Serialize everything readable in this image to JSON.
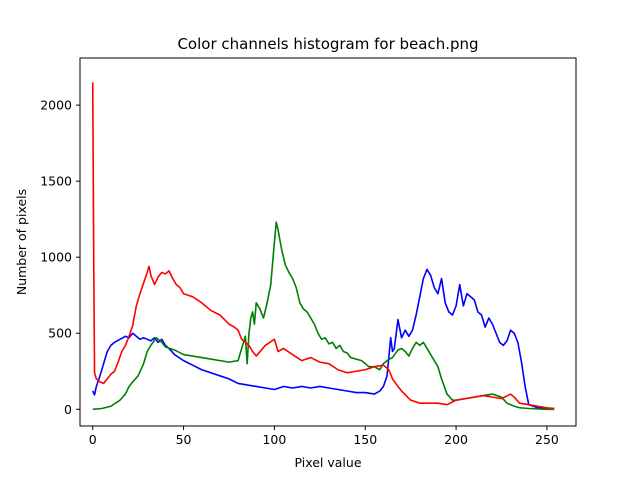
{
  "chart_data": {
    "type": "line",
    "title": "Color channels histogram for beach.png",
    "xlabel": "Pixel value",
    "ylabel": "Number of pixels",
    "xlim": [
      -7,
      266
    ],
    "ylim": [
      -110,
      2310
    ],
    "xticks": [
      0,
      50,
      100,
      150,
      200,
      250
    ],
    "yticks": [
      0,
      500,
      1000,
      1500,
      2000
    ],
    "grid": false,
    "series": [
      {
        "color": "#0000ff",
        "points": [
          [
            0,
            120
          ],
          [
            1,
            95
          ],
          [
            2,
            150
          ],
          [
            4,
            220
          ],
          [
            6,
            300
          ],
          [
            8,
            380
          ],
          [
            10,
            420
          ],
          [
            12,
            440
          ],
          [
            15,
            460
          ],
          [
            18,
            480
          ],
          [
            20,
            470
          ],
          [
            22,
            500
          ],
          [
            24,
            480
          ],
          [
            26,
            460
          ],
          [
            28,
            470
          ],
          [
            30,
            460
          ],
          [
            32,
            450
          ],
          [
            34,
            470
          ],
          [
            36,
            440
          ],
          [
            38,
            460
          ],
          [
            40,
            420
          ],
          [
            42,
            400
          ],
          [
            45,
            360
          ],
          [
            50,
            320
          ],
          [
            55,
            290
          ],
          [
            60,
            260
          ],
          [
            65,
            240
          ],
          [
            70,
            220
          ],
          [
            75,
            200
          ],
          [
            80,
            170
          ],
          [
            85,
            160
          ],
          [
            90,
            150
          ],
          [
            95,
            140
          ],
          [
            100,
            130
          ],
          [
            105,
            150
          ],
          [
            110,
            140
          ],
          [
            115,
            150
          ],
          [
            120,
            140
          ],
          [
            125,
            150
          ],
          [
            130,
            140
          ],
          [
            135,
            130
          ],
          [
            140,
            120
          ],
          [
            145,
            110
          ],
          [
            150,
            110
          ],
          [
            155,
            100
          ],
          [
            158,
            120
          ],
          [
            160,
            150
          ],
          [
            162,
            220
          ],
          [
            164,
            470
          ],
          [
            165,
            380
          ],
          [
            166,
            400
          ],
          [
            168,
            590
          ],
          [
            170,
            470
          ],
          [
            172,
            520
          ],
          [
            174,
            480
          ],
          [
            176,
            520
          ],
          [
            178,
            620
          ],
          [
            180,
            740
          ],
          [
            182,
            860
          ],
          [
            184,
            920
          ],
          [
            186,
            880
          ],
          [
            188,
            800
          ],
          [
            190,
            760
          ],
          [
            192,
            860
          ],
          [
            194,
            700
          ],
          [
            196,
            640
          ],
          [
            198,
            620
          ],
          [
            200,
            680
          ],
          [
            202,
            820
          ],
          [
            204,
            680
          ],
          [
            206,
            760
          ],
          [
            208,
            740
          ],
          [
            210,
            720
          ],
          [
            212,
            640
          ],
          [
            214,
            620
          ],
          [
            216,
            540
          ],
          [
            218,
            600
          ],
          [
            220,
            560
          ],
          [
            222,
            500
          ],
          [
            224,
            440
          ],
          [
            226,
            420
          ],
          [
            228,
            450
          ],
          [
            230,
            520
          ],
          [
            232,
            500
          ],
          [
            234,
            440
          ],
          [
            236,
            310
          ],
          [
            238,
            150
          ],
          [
            240,
            30
          ],
          [
            245,
            10
          ],
          [
            250,
            5
          ],
          [
            254,
            5
          ]
        ]
      },
      {
        "color": "#008000",
        "points": [
          [
            0,
            0
          ],
          [
            5,
            5
          ],
          [
            10,
            20
          ],
          [
            15,
            60
          ],
          [
            18,
            100
          ],
          [
            20,
            150
          ],
          [
            22,
            180
          ],
          [
            25,
            220
          ],
          [
            28,
            300
          ],
          [
            30,
            380
          ],
          [
            32,
            420
          ],
          [
            35,
            470
          ],
          [
            38,
            440
          ],
          [
            40,
            410
          ],
          [
            45,
            390
          ],
          [
            50,
            360
          ],
          [
            55,
            350
          ],
          [
            60,
            340
          ],
          [
            65,
            330
          ],
          [
            70,
            320
          ],
          [
            75,
            310
          ],
          [
            80,
            320
          ],
          [
            82,
            400
          ],
          [
            84,
            480
          ],
          [
            85,
            300
          ],
          [
            86,
            500
          ],
          [
            87,
            600
          ],
          [
            88,
            640
          ],
          [
            89,
            560
          ],
          [
            90,
            700
          ],
          [
            92,
            660
          ],
          [
            94,
            600
          ],
          [
            96,
            700
          ],
          [
            98,
            820
          ],
          [
            100,
            1100
          ],
          [
            101,
            1230
          ],
          [
            102,
            1180
          ],
          [
            104,
            1050
          ],
          [
            106,
            950
          ],
          [
            108,
            900
          ],
          [
            110,
            860
          ],
          [
            112,
            800
          ],
          [
            114,
            700
          ],
          [
            116,
            660
          ],
          [
            118,
            640
          ],
          [
            120,
            600
          ],
          [
            122,
            560
          ],
          [
            124,
            500
          ],
          [
            126,
            460
          ],
          [
            128,
            470
          ],
          [
            130,
            430
          ],
          [
            132,
            440
          ],
          [
            134,
            400
          ],
          [
            136,
            420
          ],
          [
            138,
            380
          ],
          [
            140,
            370
          ],
          [
            142,
            340
          ],
          [
            145,
            330
          ],
          [
            148,
            320
          ],
          [
            150,
            300
          ],
          [
            152,
            280
          ],
          [
            155,
            280
          ],
          [
            158,
            260
          ],
          [
            160,
            300
          ],
          [
            162,
            320
          ],
          [
            165,
            340
          ],
          [
            168,
            390
          ],
          [
            170,
            400
          ],
          [
            172,
            380
          ],
          [
            174,
            350
          ],
          [
            176,
            400
          ],
          [
            178,
            440
          ],
          [
            180,
            420
          ],
          [
            182,
            440
          ],
          [
            184,
            400
          ],
          [
            186,
            360
          ],
          [
            188,
            320
          ],
          [
            190,
            280
          ],
          [
            192,
            200
          ],
          [
            195,
            100
          ],
          [
            198,
            60
          ],
          [
            200,
            60
          ],
          [
            205,
            70
          ],
          [
            210,
            80
          ],
          [
            215,
            90
          ],
          [
            220,
            100
          ],
          [
            225,
            80
          ],
          [
            228,
            40
          ],
          [
            232,
            20
          ],
          [
            235,
            10
          ],
          [
            240,
            5
          ],
          [
            250,
            0
          ],
          [
            254,
            0
          ]
        ]
      },
      {
        "color": "#ff0000",
        "points": [
          [
            0,
            2150
          ],
          [
            0.6,
            900
          ],
          [
            1,
            240
          ],
          [
            2,
            200
          ],
          [
            4,
            180
          ],
          [
            6,
            170
          ],
          [
            8,
            200
          ],
          [
            10,
            230
          ],
          [
            12,
            250
          ],
          [
            14,
            310
          ],
          [
            16,
            380
          ],
          [
            18,
            420
          ],
          [
            20,
            480
          ],
          [
            22,
            550
          ],
          [
            24,
            680
          ],
          [
            26,
            760
          ],
          [
            28,
            830
          ],
          [
            30,
            900
          ],
          [
            31,
            940
          ],
          [
            32,
            880
          ],
          [
            34,
            820
          ],
          [
            36,
            870
          ],
          [
            38,
            900
          ],
          [
            40,
            890
          ],
          [
            42,
            910
          ],
          [
            44,
            860
          ],
          [
            46,
            820
          ],
          [
            48,
            800
          ],
          [
            50,
            760
          ],
          [
            55,
            740
          ],
          [
            60,
            700
          ],
          [
            65,
            650
          ],
          [
            70,
            620
          ],
          [
            75,
            560
          ],
          [
            78,
            540
          ],
          [
            80,
            520
          ],
          [
            82,
            460
          ],
          [
            84,
            440
          ],
          [
            86,
            420
          ],
          [
            88,
            380
          ],
          [
            90,
            350
          ],
          [
            95,
            420
          ],
          [
            100,
            460
          ],
          [
            102,
            380
          ],
          [
            105,
            400
          ],
          [
            110,
            360
          ],
          [
            115,
            320
          ],
          [
            120,
            340
          ],
          [
            125,
            310
          ],
          [
            130,
            300
          ],
          [
            135,
            260
          ],
          [
            140,
            240
          ],
          [
            145,
            250
          ],
          [
            150,
            260
          ],
          [
            155,
            280
          ],
          [
            160,
            290
          ],
          [
            163,
            260
          ],
          [
            165,
            200
          ],
          [
            168,
            150
          ],
          [
            170,
            120
          ],
          [
            175,
            60
          ],
          [
            180,
            40
          ],
          [
            185,
            40
          ],
          [
            190,
            40
          ],
          [
            195,
            30
          ],
          [
            200,
            60
          ],
          [
            205,
            70
          ],
          [
            210,
            80
          ],
          [
            215,
            90
          ],
          [
            220,
            80
          ],
          [
            225,
            70
          ],
          [
            230,
            100
          ],
          [
            232,
            80
          ],
          [
            235,
            40
          ],
          [
            240,
            30
          ],
          [
            245,
            20
          ],
          [
            250,
            10
          ],
          [
            254,
            5
          ]
        ]
      }
    ]
  }
}
